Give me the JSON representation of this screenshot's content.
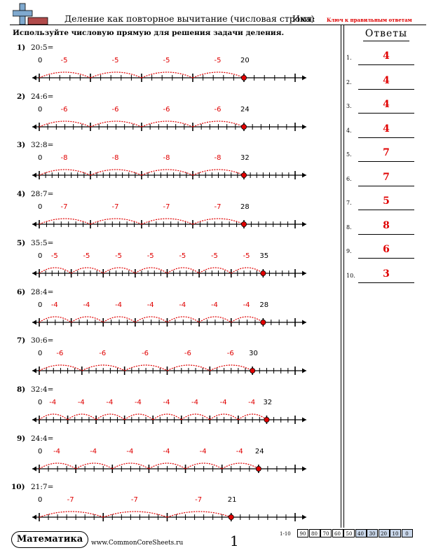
{
  "header": {
    "title": "Деление как повторное вычитание (числовая строка)",
    "name_label": "Имя:",
    "answer_key_label": "Ключ к правильным ответам"
  },
  "instruction": "Используйте числовую прямую для решения задачи деления.",
  "answers_title": "Ответы",
  "colors": {
    "accent": "#e00000",
    "logo_blue": "#7fa9cf",
    "logo_red": "#b04a4a"
  },
  "problems": [
    {
      "num": "1)",
      "expr": "20:5=",
      "dividend": 20,
      "divisor": 5,
      "step_label": "-5",
      "zero": "0",
      "end_label": "20"
    },
    {
      "num": "2)",
      "expr": "24:6=",
      "dividend": 24,
      "divisor": 6,
      "step_label": "-6",
      "zero": "0",
      "end_label": "24"
    },
    {
      "num": "3)",
      "expr": "32:8=",
      "dividend": 32,
      "divisor": 8,
      "step_label": "-8",
      "zero": "0",
      "end_label": "32"
    },
    {
      "num": "4)",
      "expr": "28:7=",
      "dividend": 28,
      "divisor": 7,
      "step_label": "-7",
      "zero": "0",
      "end_label": "28"
    },
    {
      "num": "5)",
      "expr": "35:5=",
      "dividend": 35,
      "divisor": 5,
      "step_label": "-5",
      "zero": "0",
      "end_label": "35"
    },
    {
      "num": "6)",
      "expr": "28:4=",
      "dividend": 28,
      "divisor": 4,
      "step_label": "-4",
      "zero": "0",
      "end_label": "28"
    },
    {
      "num": "7)",
      "expr": "30:6=",
      "dividend": 30,
      "divisor": 6,
      "step_label": "-6",
      "zero": "0",
      "end_label": "30"
    },
    {
      "num": "8)",
      "expr": "32:4=",
      "dividend": 32,
      "divisor": 4,
      "step_label": "-4",
      "zero": "0",
      "end_label": "32"
    },
    {
      "num": "9)",
      "expr": "24:4=",
      "dividend": 24,
      "divisor": 4,
      "step_label": "-4",
      "zero": "0",
      "end_label": "24"
    },
    {
      "num": "10)",
      "expr": "21:7=",
      "dividend": 21,
      "divisor": 7,
      "step_label": "-7",
      "zero": "0",
      "end_label": "21"
    }
  ],
  "answers": [
    {
      "num": "1.",
      "value": "4"
    },
    {
      "num": "2.",
      "value": "4"
    },
    {
      "num": "3.",
      "value": "4"
    },
    {
      "num": "4.",
      "value": "4"
    },
    {
      "num": "5.",
      "value": "7"
    },
    {
      "num": "6.",
      "value": "7"
    },
    {
      "num": "7.",
      "value": "5"
    },
    {
      "num": "8.",
      "value": "8"
    },
    {
      "num": "9.",
      "value": "6"
    },
    {
      "num": "10.",
      "value": "3"
    }
  ],
  "footer": {
    "brand": "Математика",
    "site": "www.CommonCoreSheets.ru",
    "page": "1",
    "score_label": "1-10",
    "scores": [
      "90",
      "80",
      "70",
      "60",
      "50",
      "40",
      "30",
      "20",
      "10",
      "0"
    ]
  }
}
